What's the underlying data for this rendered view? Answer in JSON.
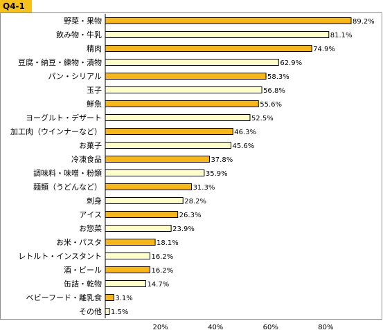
{
  "question_tab": "Q4-1",
  "colors": {
    "odd_bar": "#f7b619",
    "even_bar": "#ffffcc",
    "bar_stroke": "#000000",
    "tab": "#f7c21a"
  },
  "chart_data": {
    "type": "bar",
    "orientation": "horizontal",
    "categories": [
      "野菜・果物",
      "飲み物・牛乳",
      "精肉",
      "豆腐・納豆・練物・漬物",
      "パン・シリアル",
      "玉子",
      "鮮魚",
      "ヨーグルト・デザート",
      "加工肉（ウインナーなど）",
      "お菓子",
      "冷凍食品",
      "調味料・味噌・粉類",
      "麺類（うどんなど）",
      "刺身",
      "アイス",
      "お惣菜",
      "お米・パスタ",
      "レトルト・インスタント",
      "酒・ビール",
      "缶詰・乾物",
      "ベビーフード・離乳食",
      "その他"
    ],
    "values": [
      89.2,
      81.1,
      74.9,
      62.9,
      58.3,
      56.8,
      55.6,
      52.5,
      46.3,
      45.6,
      37.8,
      35.9,
      31.3,
      28.2,
      26.3,
      23.9,
      18.1,
      16.2,
      16.2,
      14.7,
      3.1,
      1.5
    ],
    "value_labels": [
      "89.2%",
      "81.1%",
      "74.9%",
      "62.9%",
      "58.3%",
      "56.8%",
      "55.6%",
      "52.5%",
      "46.3%",
      "45.6%",
      "37.8%",
      "35.9%",
      "31.3%",
      "28.2%",
      "26.3%",
      "23.9%",
      "18.1%",
      "16.2%",
      "16.2%",
      "14.7%",
      "3.1%",
      "1.5%"
    ],
    "xticks": [
      20,
      40,
      60,
      80
    ],
    "xtick_labels": [
      "20%",
      "40%",
      "60%",
      "80%"
    ],
    "xlim": [
      0,
      100
    ],
    "grid": false,
    "legend": "none"
  }
}
